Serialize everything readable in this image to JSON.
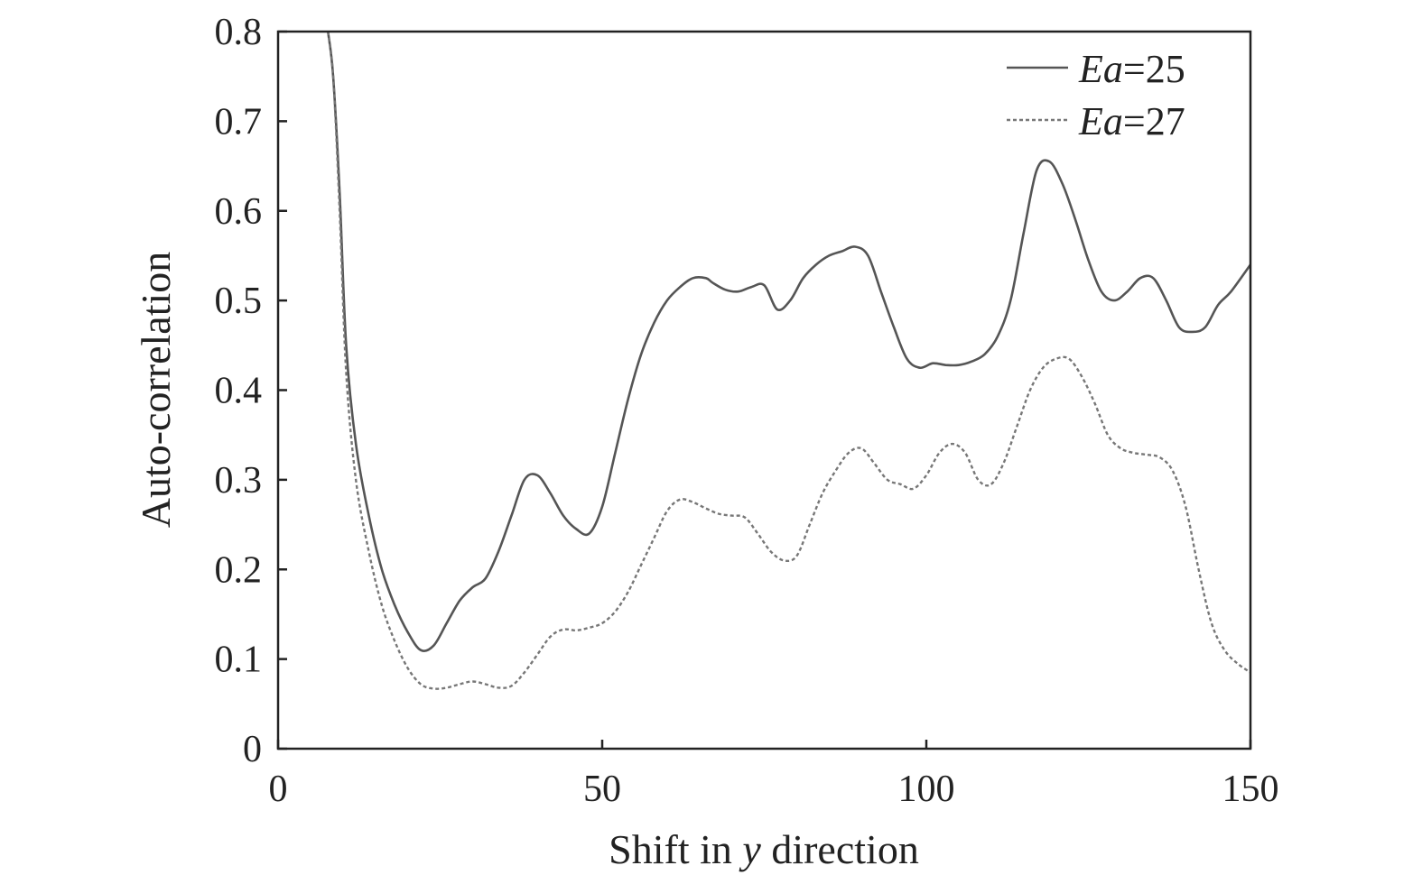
{
  "chart_data": {
    "type": "line",
    "title": "",
    "xlabel": {
      "before": "Shift in ",
      "italic": "y",
      "after": " direction"
    },
    "ylabel": "Auto-correlation",
    "xlim": [
      0,
      150
    ],
    "ylim": [
      0,
      0.8
    ],
    "xticks": [
      0,
      50,
      100,
      150
    ],
    "xtick_labels": [
      "0",
      "50",
      "100",
      "150"
    ],
    "yticks": [
      0,
      0.1,
      0.2,
      0.3,
      0.4,
      0.5,
      0.6,
      0.7,
      0.8
    ],
    "ytick_labels": [
      "0",
      "0.1",
      "0.2",
      "0.3",
      "0.4",
      "0.5",
      "0.6",
      "0.7",
      "0.8"
    ],
    "grid": false,
    "legend_position": "top-right",
    "series": [
      {
        "name": "Ea=25",
        "legend_italic": "Ea",
        "legend_rest": "=25",
        "style": "solid",
        "color": "#555555",
        "x": [
          7.7,
          8.5,
          9.5,
          10.5,
          12,
          14,
          16,
          18,
          20,
          22,
          24,
          26,
          28,
          30,
          32,
          34,
          36,
          38,
          40,
          42,
          44,
          46,
          48,
          50,
          52,
          54,
          56,
          58,
          60,
          62,
          64,
          66,
          67,
          69,
          71,
          73,
          75,
          77,
          79,
          81,
          83,
          85,
          87,
          89,
          91,
          93,
          95,
          97,
          99,
          101,
          103,
          105,
          107,
          109,
          111,
          113,
          115,
          117,
          119,
          121,
          123,
          125,
          127,
          129,
          131,
          133,
          135,
          137,
          139,
          141,
          143,
          145,
          147,
          150
        ],
        "values": [
          0.8,
          0.75,
          0.62,
          0.45,
          0.34,
          0.26,
          0.2,
          0.16,
          0.13,
          0.11,
          0.115,
          0.14,
          0.165,
          0.18,
          0.19,
          0.22,
          0.26,
          0.3,
          0.305,
          0.285,
          0.26,
          0.245,
          0.24,
          0.27,
          0.33,
          0.39,
          0.44,
          0.475,
          0.5,
          0.515,
          0.525,
          0.525,
          0.52,
          0.512,
          0.51,
          0.515,
          0.517,
          0.49,
          0.5,
          0.525,
          0.54,
          0.55,
          0.555,
          0.56,
          0.55,
          0.51,
          0.47,
          0.435,
          0.425,
          0.43,
          0.428,
          0.428,
          0.432,
          0.44,
          0.46,
          0.5,
          0.575,
          0.645,
          0.655,
          0.63,
          0.59,
          0.545,
          0.51,
          0.5,
          0.51,
          0.525,
          0.525,
          0.5,
          0.47,
          0.465,
          0.47,
          0.495,
          0.51,
          0.54
        ]
      },
      {
        "name": "Ea=27",
        "legend_italic": "Ea",
        "legend_rest": "=27",
        "style": "dotted",
        "color": "#777777",
        "x": [
          7.7,
          8.5,
          9.5,
          10.5,
          12,
          14,
          16,
          18,
          20,
          22,
          24,
          26,
          28,
          30,
          32,
          34,
          36,
          38,
          40,
          42,
          44,
          46,
          48,
          50,
          52,
          54,
          56,
          58,
          60,
          62,
          64,
          66,
          68,
          70,
          72,
          74,
          76,
          78,
          80,
          82,
          84,
          86,
          88,
          90,
          92,
          94,
          96,
          98,
          100,
          102,
          104,
          106,
          108,
          110,
          112,
          114,
          116,
          118,
          120,
          122,
          124,
          126,
          128,
          130,
          132,
          134,
          136,
          138,
          140,
          142,
          144,
          146,
          148,
          150
        ],
        "values": [
          0.8,
          0.75,
          0.6,
          0.42,
          0.3,
          0.22,
          0.16,
          0.12,
          0.09,
          0.072,
          0.067,
          0.068,
          0.072,
          0.075,
          0.072,
          0.068,
          0.07,
          0.085,
          0.105,
          0.125,
          0.133,
          0.132,
          0.135,
          0.14,
          0.153,
          0.175,
          0.205,
          0.235,
          0.265,
          0.278,
          0.275,
          0.268,
          0.262,
          0.26,
          0.258,
          0.24,
          0.22,
          0.21,
          0.215,
          0.25,
          0.285,
          0.31,
          0.33,
          0.335,
          0.318,
          0.3,
          0.295,
          0.29,
          0.305,
          0.33,
          0.34,
          0.33,
          0.3,
          0.295,
          0.32,
          0.36,
          0.4,
          0.425,
          0.435,
          0.435,
          0.415,
          0.385,
          0.35,
          0.335,
          0.33,
          0.328,
          0.325,
          0.31,
          0.27,
          0.2,
          0.14,
          0.11,
          0.095,
          0.085
        ]
      }
    ]
  }
}
